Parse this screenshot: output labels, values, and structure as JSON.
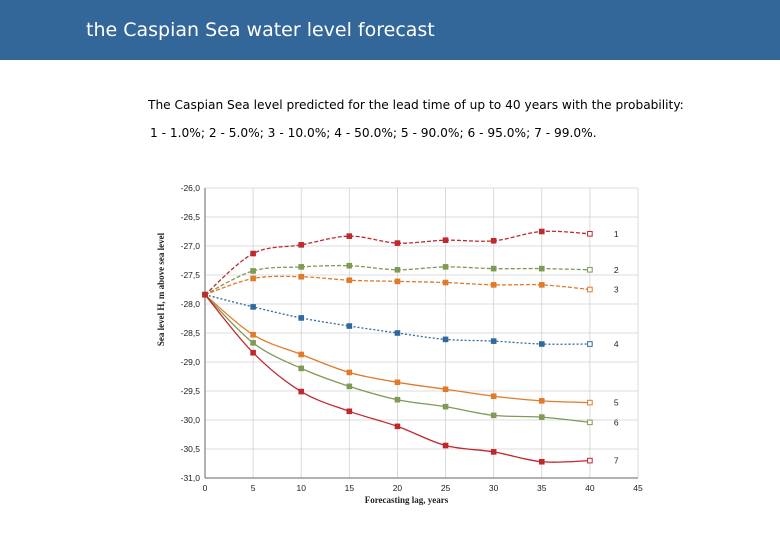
{
  "header": {
    "title": "the Caspian Sea water level forecast"
  },
  "description": {
    "line1": "The Caspian Sea level predicted for the lead time of up to 40 years with the probability:",
    "line2": "1 - 1.0%; 2 - 5.0%; 3 - 10.0%; 4 - 50.0%; 5 - 90.0%; 6 - 95.0%; 7 - 99.0%."
  },
  "chart_data": {
    "type": "line",
    "xlabel": "Forecasting lag, years",
    "ylabel": "Sea level H, m above sea level",
    "xlim": [
      0,
      45
    ],
    "ylim": [
      -31.0,
      -26.0
    ],
    "x_ticks": [
      "0",
      "5",
      "10",
      "15",
      "20",
      "25",
      "30",
      "35",
      "40",
      "45"
    ],
    "y_ticks": [
      "-26,0",
      "-26,5",
      "-27,0",
      "-27,5",
      "-28,0",
      "-28,5",
      "-29,0",
      "-29,5",
      "-30,0",
      "-30,5",
      "-31,0"
    ],
    "grid": true,
    "x": [
      0,
      5,
      10,
      15,
      20,
      25,
      30,
      35,
      40
    ],
    "series": [
      {
        "name": "1",
        "color": "#c0282d",
        "marker": "square",
        "dash": "dashed",
        "values": [
          -27.84,
          -27.13,
          -26.98,
          -26.83,
          -26.95,
          -26.9,
          -26.91,
          -26.75,
          -26.79
        ]
      },
      {
        "name": "2",
        "color": "#7f9a55",
        "marker": "square",
        "dash": "dashed",
        "values": [
          -27.84,
          -27.43,
          -27.36,
          -27.34,
          -27.41,
          -27.36,
          -27.39,
          -27.39,
          -27.41
        ]
      },
      {
        "name": "3",
        "color": "#e07b2a",
        "marker": "square",
        "dash": "dashed",
        "values": [
          -27.84,
          -27.56,
          -27.53,
          -27.59,
          -27.61,
          -27.63,
          -27.67,
          -27.67,
          -27.75
        ]
      },
      {
        "name": "4",
        "color": "#2e6aa0",
        "marker": "square",
        "dash": "dotted",
        "values": [
          -27.84,
          -28.05,
          -28.24,
          -28.38,
          -28.5,
          -28.61,
          -28.64,
          -28.69,
          -28.69
        ]
      },
      {
        "name": "5",
        "color": "#e07b2a",
        "marker": "square",
        "dash": "solid",
        "values": [
          -27.84,
          -28.53,
          -28.87,
          -29.18,
          -29.35,
          -29.47,
          -29.59,
          -29.67,
          -29.7
        ]
      },
      {
        "name": "6",
        "color": "#7f9a55",
        "marker": "square",
        "dash": "solid",
        "values": [
          -27.84,
          -28.67,
          -29.11,
          -29.42,
          -29.65,
          -29.77,
          -29.92,
          -29.95,
          -30.04
        ]
      },
      {
        "name": "7",
        "color": "#c0282d",
        "marker": "square",
        "dash": "solid",
        "values": [
          -27.84,
          -28.84,
          -29.51,
          -29.85,
          -30.11,
          -30.44,
          -30.55,
          -30.72,
          -30.7
        ]
      }
    ]
  }
}
